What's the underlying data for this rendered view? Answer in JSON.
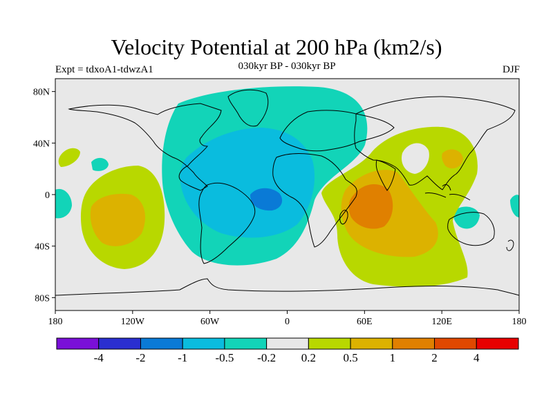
{
  "title": "Velocity Potential at 200 hPa (km2/s)",
  "subtitle_left": "Expt = tdxoA1-tdwzA1",
  "subtitle_center": "030kyr BP - 030kyr BP",
  "subtitle_right": "DJF",
  "map": {
    "lon_range": [
      -180,
      180
    ],
    "lat_range": [
      -90,
      90
    ],
    "lat_ticks": [
      {
        "value": 80,
        "label": "80N"
      },
      {
        "value": 40,
        "label": "40N"
      },
      {
        "value": 0,
        "label": "0"
      },
      {
        "value": -40,
        "label": "40S"
      },
      {
        "value": -80,
        "label": "80S"
      }
    ],
    "lon_ticks": [
      {
        "value": -180,
        "label": "180"
      },
      {
        "value": -120,
        "label": "120W"
      },
      {
        "value": -60,
        "label": "60W"
      },
      {
        "value": 0,
        "label": "0"
      },
      {
        "value": 60,
        "label": "60E"
      },
      {
        "value": 120,
        "label": "120E"
      },
      {
        "value": 180,
        "label": "180"
      }
    ],
    "background_color": "#e8e8e8",
    "coastline_color": "#000000"
  },
  "colorbar": {
    "colors": [
      "#7a10d8",
      "#2a2fd0",
      "#0a7ad6",
      "#0abcde",
      "#12d4b8",
      "#e8e8e8",
      "#b8d800",
      "#dcb200",
      "#e08000",
      "#e04800",
      "#e80000"
    ],
    "labels": [
      "-4",
      "-2",
      "-1",
      "-0.5",
      "-0.2",
      "0.2",
      "0.5",
      "1",
      "2",
      "4"
    ]
  },
  "palette": {
    "cyan_green": "#12d4b8",
    "light_blue": "#0abcde",
    "blue": "#0a7ad6",
    "yellow_green": "#b8d800",
    "gold": "#dcb200",
    "orange": "#e08000"
  }
}
